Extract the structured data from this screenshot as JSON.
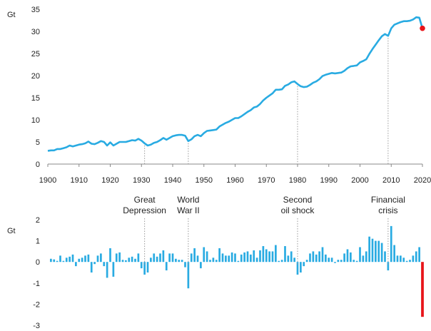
{
  "chart_data": [
    {
      "type": "line",
      "ylabel": "Gt",
      "xlim": [
        1900,
        2020
      ],
      "ylim": [
        0,
        35
      ],
      "x_ticks": [
        "1900",
        "1910",
        "1920",
        "1930",
        "1940",
        "1950",
        "1960",
        "1970",
        "1980",
        "1990",
        "2000",
        "2010",
        "2020"
      ],
      "y_ticks": [
        "0",
        "5",
        "10",
        "15",
        "20",
        "25",
        "30",
        "35"
      ],
      "line_color": "#29ABE2",
      "highlight_color": "#E8141A",
      "series": [
        {
          "x": [
            1900,
            1901,
            1902,
            1903,
            1904,
            1905,
            1906,
            1907,
            1908,
            1909,
            1910,
            1911,
            1912,
            1913,
            1914,
            1915,
            1916,
            1917,
            1918,
            1919,
            1920,
            1921,
            1922,
            1923,
            1924,
            1925,
            1926,
            1927,
            1928,
            1929,
            1930,
            1931,
            1932,
            1933,
            1934,
            1935,
            1936,
            1937,
            1938,
            1939,
            1940,
            1941,
            1942,
            1943,
            1944,
            1945,
            1946,
            1947,
            1948,
            1949,
            1950,
            1951,
            1952,
            1953,
            1954,
            1955,
            1956,
            1957,
            1958,
            1959,
            1960,
            1961,
            1962,
            1963,
            1964,
            1965,
            1966,
            1967,
            1968,
            1969,
            1970,
            1971,
            1972,
            1973,
            1974,
            1975,
            1976,
            1977,
            1978,
            1979,
            1980,
            1981,
            1982,
            1983,
            1984,
            1985,
            1986,
            1987,
            1988,
            1989,
            1990,
            1991,
            1992,
            1993,
            1994,
            1995,
            1996,
            1997,
            1998,
            1999,
            2000,
            2001,
            2002,
            2003,
            2004,
            2005,
            2006,
            2007,
            2008,
            2009,
            2010,
            2011,
            2012,
            2013,
            2014,
            2015,
            2016,
            2017,
            2018,
            2019
          ],
          "y": [
            3.0,
            3.1,
            3.1,
            3.4,
            3.4,
            3.6,
            3.8,
            4.2,
            4.0,
            4.2,
            4.4,
            4.5,
            4.7,
            5.1,
            4.6,
            4.5,
            4.8,
            5.2,
            5.0,
            4.2,
            4.9,
            4.2,
            4.6,
            5.0,
            5.0,
            5.0,
            5.2,
            5.4,
            5.3,
            5.7,
            5.3,
            4.7,
            4.2,
            4.4,
            4.8,
            5.0,
            5.4,
            5.9,
            5.5,
            5.9,
            6.3,
            6.5,
            6.6,
            6.6,
            6.4,
            5.2,
            5.6,
            6.3,
            6.6,
            6.3,
            7.0,
            7.5,
            7.6,
            7.7,
            7.8,
            8.5,
            8.9,
            9.3,
            9.6,
            10.0,
            10.4,
            10.4,
            10.8,
            11.3,
            11.8,
            12.2,
            12.8,
            13.0,
            13.6,
            14.4,
            15.0,
            15.5,
            16.0,
            16.8,
            16.8,
            16.9,
            17.7,
            18.0,
            18.5,
            18.7,
            18.1,
            17.6,
            17.4,
            17.5,
            17.9,
            18.4,
            18.7,
            19.2,
            19.9,
            20.2,
            20.4,
            20.6,
            20.5,
            20.6,
            20.7,
            21.1,
            21.7,
            22.1,
            22.2,
            22.3,
            23.0,
            23.3,
            23.7,
            24.9,
            26.0,
            27.0,
            28.0,
            28.9,
            29.4,
            29.0,
            30.7,
            31.5,
            31.8,
            32.1,
            32.3,
            32.3,
            32.4,
            32.7,
            33.2,
            33.1
          ]
        }
      ],
      "highlight_point": {
        "x": 2020,
        "y": 30.7
      }
    },
    {
      "type": "bar",
      "ylabel": "Gt",
      "xlim": [
        1900,
        2020
      ],
      "ylim": [
        -3,
        2
      ],
      "y_ticks": [
        "2",
        "1",
        "0",
        "-1",
        "-2",
        "-3"
      ],
      "bar_color": "#29ABE2",
      "highlight_color": "#E8141A",
      "x": [
        1901,
        1902,
        1903,
        1904,
        1905,
        1906,
        1907,
        1908,
        1909,
        1910,
        1911,
        1912,
        1913,
        1914,
        1915,
        1916,
        1917,
        1918,
        1919,
        1920,
        1921,
        1922,
        1923,
        1924,
        1925,
        1926,
        1927,
        1928,
        1929,
        1930,
        1931,
        1932,
        1933,
        1934,
        1935,
        1936,
        1937,
        1938,
        1939,
        1940,
        1941,
        1942,
        1943,
        1944,
        1945,
        1946,
        1947,
        1948,
        1949,
        1950,
        1951,
        1952,
        1953,
        1954,
        1955,
        1956,
        1957,
        1958,
        1959,
        1960,
        1961,
        1962,
        1963,
        1964,
        1965,
        1966,
        1967,
        1968,
        1969,
        1970,
        1971,
        1972,
        1973,
        1974,
        1975,
        1976,
        1977,
        1978,
        1979,
        1980,
        1981,
        1982,
        1983,
        1984,
        1985,
        1986,
        1987,
        1988,
        1989,
        1990,
        1991,
        1992,
        1993,
        1994,
        1995,
        1996,
        1997,
        1998,
        1999,
        2000,
        2001,
        2002,
        2003,
        2004,
        2005,
        2006,
        2007,
        2008,
        2009,
        2010,
        2011,
        2012,
        2013,
        2014,
        2015,
        2016,
        2017,
        2018,
        2019,
        2020
      ],
      "values": [
        0.15,
        0.12,
        0.05,
        0.3,
        0.05,
        0.2,
        0.25,
        0.35,
        -0.2,
        0.15,
        0.2,
        0.3,
        0.35,
        -0.5,
        -0.1,
        0.3,
        0.4,
        -0.2,
        -0.75,
        0.65,
        -0.7,
        0.4,
        0.45,
        0.1,
        0.08,
        0.2,
        0.25,
        0.15,
        0.4,
        -0.3,
        -0.6,
        -0.5,
        0.2,
        0.4,
        0.25,
        0.4,
        0.55,
        -0.4,
        0.4,
        0.4,
        0.15,
        0.1,
        0.1,
        -0.25,
        -1.25,
        0.4,
        0.65,
        0.3,
        -0.3,
        0.7,
        0.5,
        0.1,
        0.2,
        0.1,
        0.65,
        0.4,
        0.3,
        0.3,
        0.45,
        0.4,
        0.05,
        0.35,
        0.45,
        0.5,
        0.35,
        0.55,
        0.2,
        0.55,
        0.75,
        0.6,
        0.5,
        0.5,
        0.8,
        0.05,
        0.1,
        0.75,
        0.3,
        0.5,
        0.2,
        -0.6,
        -0.5,
        -0.2,
        0.1,
        0.4,
        0.5,
        0.35,
        0.5,
        0.7,
        0.35,
        0.2,
        0.2,
        -0.05,
        0.1,
        0.1,
        0.4,
        0.6,
        0.45,
        0.1,
        0.05,
        0.7,
        0.3,
        0.5,
        1.2,
        1.1,
        1.0,
        1.0,
        0.9,
        0.5,
        -0.4,
        1.7,
        0.8,
        0.3,
        0.3,
        0.2,
        0.05,
        0.1,
        0.3,
        0.5,
        0.7,
        -2.6
      ]
    }
  ],
  "annotations": [
    {
      "year": 1931,
      "lines": [
        "Great",
        "Depression"
      ]
    },
    {
      "year": 1945,
      "lines": [
        "World",
        "War II"
      ]
    },
    {
      "year": 1980,
      "lines": [
        "Second",
        "oil shock"
      ]
    },
    {
      "year": 2009,
      "lines": [
        "Financial",
        "crisis"
      ]
    }
  ]
}
